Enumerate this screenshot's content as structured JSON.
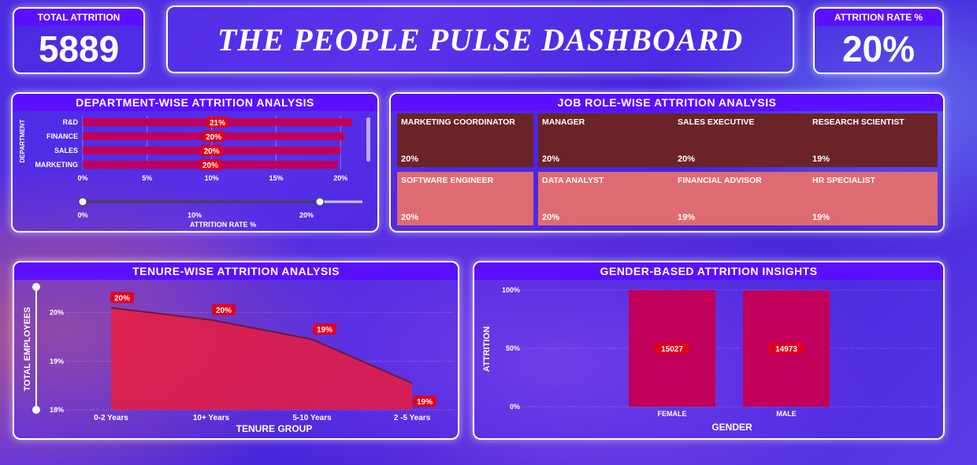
{
  "kpis": {
    "total_attrition": {
      "label": "TOTAL ATTRITION",
      "value": "5889"
    },
    "attrition_rate": {
      "label": "ATTRITION RATE %",
      "value": "20%"
    }
  },
  "title": "THE PEOPLE PULSE DASHBOARD",
  "department_panel": {
    "title": "DEPARTMENT-WISE ATTRITION ANALYSIS",
    "ylabel": "DEPARTMENT",
    "xlabel": "ATTRITION RATE %",
    "slider_ticks": [
      "0%",
      "10%",
      "20%"
    ]
  },
  "job_panel": {
    "title": "JOB ROLE-WISE ATTRITION ANALYSIS",
    "tiles": [
      {
        "role": "MARKETING COORDINATOR",
        "value": "20%"
      },
      {
        "role": "MANAGER",
        "value": "20%"
      },
      {
        "role": "SALES EXECUTIVE",
        "value": "20%"
      },
      {
        "role": "RESEARCH SCIENTIST",
        "value": "19%"
      },
      {
        "role": "SOFTWARE ENGINEER",
        "value": "20%"
      },
      {
        "role": "DATA ANALYST",
        "value": "20%"
      },
      {
        "role": "FINANCIAL ADVISOR",
        "value": "19%"
      },
      {
        "role": "HR SPECIALIST",
        "value": "19%"
      }
    ],
    "colors": {
      "dark": "#6b2328",
      "light": "#df6b72"
    }
  },
  "tenure_panel": {
    "title": "TENURE-WISE ATTRITION ANALYSIS"
  },
  "gender_panel": {
    "title": "GENDER-BASED ATTRITION INSIGHTS"
  },
  "colors": {
    "accent": "#5a10ff",
    "bar": "#c0005a",
    "label": "#e3001b"
  },
  "chart_data": [
    {
      "type": "bar",
      "orientation": "horizontal",
      "title": "DEPARTMENT-WISE ATTRITION ANALYSIS",
      "categories": [
        "R&D",
        "FINANCE",
        "SALES",
        "MARKETING"
      ],
      "values": [
        20.9,
        20.3,
        20.0,
        19.8
      ],
      "data_labels": [
        "21%",
        "20%",
        "20%",
        "20%"
      ],
      "xlim": [
        0,
        22
      ],
      "xticks": [
        "0%",
        "5%",
        "10%",
        "15%",
        "20%"
      ],
      "xlabel": "ATTRITION RATE %",
      "ylabel": "DEPARTMENT"
    },
    {
      "type": "area",
      "title": "TENURE-WISE ATTRITION ANALYSIS",
      "categories": [
        "0-2 Years",
        "10+ Years",
        "5-10 Years",
        "2 -5 Years"
      ],
      "values": [
        20.1,
        19.85,
        19.45,
        18.55
      ],
      "data_labels": [
        "20%",
        "20%",
        "19%",
        "19%"
      ],
      "ylim": [
        18,
        20.4
      ],
      "yticks": [
        "18%",
        "19%",
        "20%"
      ],
      "xlabel": "TENURE GROUP",
      "ylabel": "TOTAL EMPLOYEES"
    },
    {
      "type": "bar",
      "title": "GENDER-BASED ATTRITION INSIGHTS",
      "categories": [
        "FEMALE",
        "MALE"
      ],
      "values": [
        15027,
        14973
      ],
      "data_labels": [
        "15027",
        "14973"
      ],
      "ylim": [
        0,
        100
      ],
      "yticks": [
        "0%",
        "50%",
        "100%"
      ],
      "xlabel": "GENDER",
      "ylabel": "ATTRITION"
    }
  ]
}
